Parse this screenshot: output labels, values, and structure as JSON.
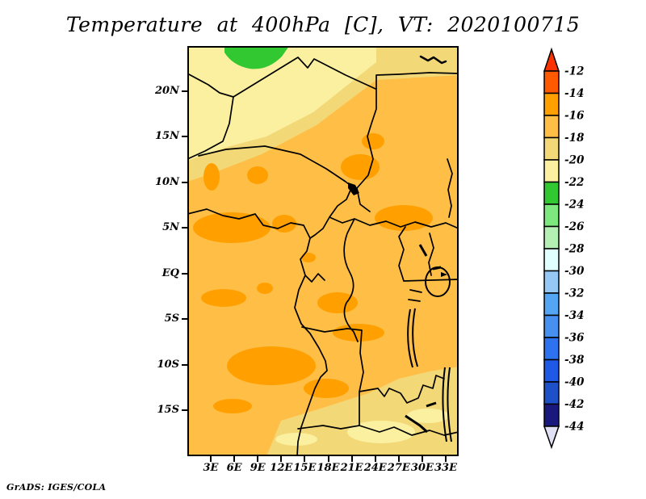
{
  "title": "Temperature at 400hPa [C], VT: 2020100715",
  "attribution": "GrADS: IGES/COLA",
  "chart_data": {
    "type": "heatmap",
    "subtype": "filled-contour-weather-map",
    "title": "Temperature at 400hPa [C], VT: 2020100715",
    "variable": "Temperature",
    "pressure_level": "400hPa",
    "units": "C",
    "valid_time": "2020100715",
    "region": "Central Africa, approx 0E-35E and 20S-25N",
    "grid": false,
    "legend_position": "right",
    "x_axis": {
      "tick_labels": [
        "3E",
        "6E",
        "9E",
        "12E",
        "15E",
        "18E",
        "21E",
        "24E",
        "27E",
        "30E",
        "33E"
      ]
    },
    "y_axis": {
      "tick_labels": [
        "20N",
        "15N",
        "10N",
        "5N",
        "EQ",
        "5S",
        "10S",
        "15S"
      ]
    },
    "colorbar": {
      "orientation": "vertical",
      "boundary_labels": [
        "-12",
        "-14",
        "-16",
        "-18",
        "-20",
        "-22",
        "-24",
        "-26",
        "-28",
        "-30",
        "-32",
        "-34",
        "-36",
        "-38",
        "-40",
        "-42",
        "-44"
      ],
      "segment_colors_top_to_bottom": [
        "#ff5a00",
        "#ffa000",
        "#ffbe46",
        "#f3d878",
        "#faf0a0",
        "#32c832",
        "#7de87d",
        "#b4f0b4",
        "#e1ffff",
        "#96c8f5",
        "#55a5f5",
        "#4690f0",
        "#2d73f0",
        "#1e5ae6",
        "#1e50c8",
        "#19197d"
      ],
      "above_max_arrow_color": "#fa3200",
      "below_min_arrow_color": "#e1e1f5"
    },
    "shaded_field_summary": [
      {
        "value_range": "-14 to -16",
        "color": "#ffa000",
        "coverage": "scattered warmer patches over West Africa coast, NE Nigeria/Chad, South Sudan and a broad band over Congo/Angola (0-12S)"
      },
      {
        "value_range": "-16 to -18",
        "color": "#ffbe46",
        "coverage": "dominant shading over most of the domain between about 12N and 20S"
      },
      {
        "value_range": "-18 to -20",
        "color": "#f3d878",
        "coverage": "transition band across the Sahel (12N-18N) and the southeast corner (Zambia region)"
      },
      {
        "value_range": "-20 to -22",
        "color": "#faf0a0",
        "coverage": "far north Sahara band (18N-25N west of 24E) and small pale pockets in the southeast"
      },
      {
        "value_range": "-22 to -24",
        "color": "#32c832",
        "coverage": "small cold green patch at the far north edge near 23-25N, 4-13E"
      }
    ]
  }
}
